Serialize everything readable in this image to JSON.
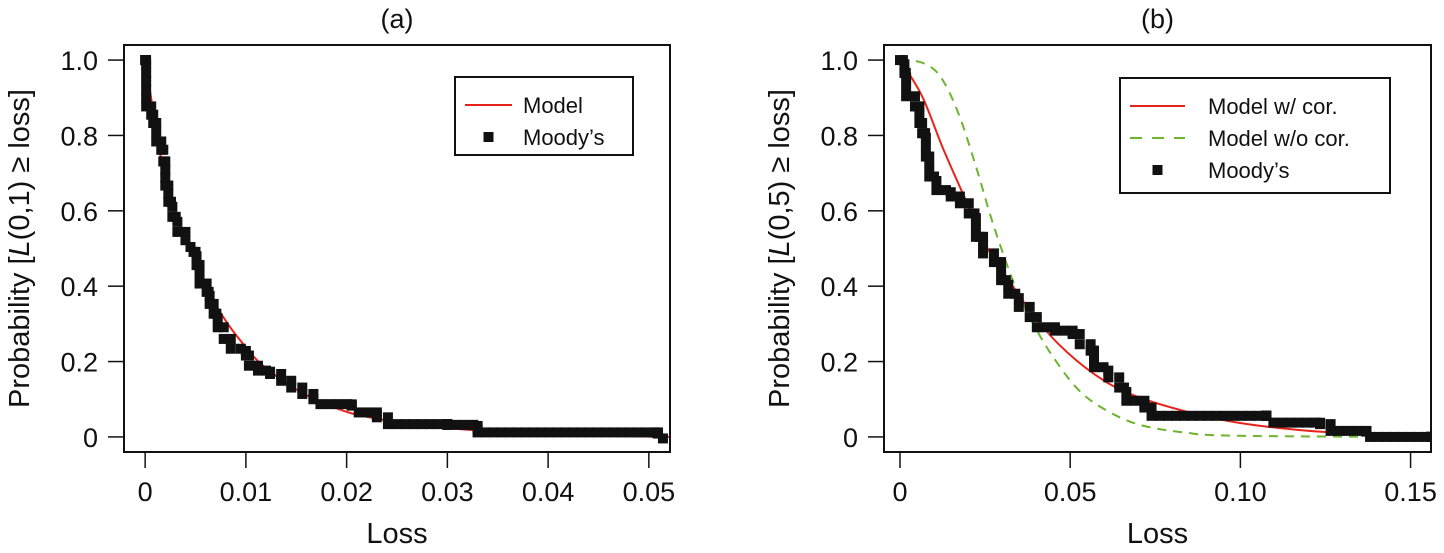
{
  "chart_data": [
    {
      "type": "scatter",
      "title": "(a)",
      "xlabel": "Loss",
      "ylabel_parts": [
        "Probability [",
        "L",
        "(0,1) ≥ loss]"
      ],
      "xlim": [
        -0.0021,
        0.0521
      ],
      "ylim": [
        -0.04,
        1.04
      ],
      "xticks": [
        0,
        0.01,
        0.02,
        0.03,
        0.04,
        0.05
      ],
      "xtick_labels": [
        "0",
        "0.01",
        "0.02",
        "0.03",
        "0.04",
        "0.05"
      ],
      "yticks": [
        0,
        0.2,
        0.4,
        0.6,
        0.8,
        1.0
      ],
      "ytick_labels": [
        "0",
        "0.2",
        "0.4",
        "0.6",
        "0.8",
        "1.0"
      ],
      "grid": false,
      "legend_placement": "top-right",
      "series": [
        {
          "name": "Model",
          "kind": "line",
          "color": "#e8231b",
          "dash": false,
          "x": [
            0,
            0.0011,
            0.002,
            0.0034,
            0.005,
            0.0064,
            0.0082,
            0.01,
            0.0117,
            0.0152,
            0.0188,
            0.0223,
            0.0294,
            0.04,
            0.052
          ],
          "y": [
            1.0,
            0.815,
            0.682,
            0.558,
            0.469,
            0.38,
            0.3,
            0.238,
            0.189,
            0.123,
            0.078,
            0.052,
            0.025,
            0.007,
            0.0
          ]
        },
        {
          "name": "Moody’s",
          "kind": "step-markers",
          "color": "#111111",
          "x": [
            0,
            0.0001,
            0.0006,
            0.0008,
            0.0011,
            0.0016,
            0.0018,
            0.002,
            0.0023,
            0.0027,
            0.0032,
            0.004,
            0.0045,
            0.0048,
            0.0051,
            0.0054,
            0.0061,
            0.0064,
            0.0068,
            0.0072,
            0.0078,
            0.0085,
            0.01,
            0.0103,
            0.0112,
            0.0124,
            0.0135,
            0.0145,
            0.0156,
            0.0167,
            0.0174,
            0.0205,
            0.0212,
            0.023,
            0.0241,
            0.03,
            0.033,
            0.0509,
            0.0514
          ],
          "y": [
            1.0,
            0.877,
            0.855,
            0.833,
            0.784,
            0.762,
            0.731,
            0.667,
            0.624,
            0.584,
            0.544,
            0.522,
            0.504,
            0.491,
            0.456,
            0.407,
            0.385,
            0.353,
            0.327,
            0.291,
            0.26,
            0.234,
            0.216,
            0.189,
            0.176,
            0.167,
            0.149,
            0.131,
            0.114,
            0.1,
            0.087,
            0.083,
            0.065,
            0.052,
            0.034,
            0.032,
            0.012,
            0.009,
            -0.004
          ]
        }
      ]
    },
    {
      "type": "scatter",
      "title": "(b)",
      "xlabel": "Loss",
      "ylabel_parts": [
        "Probability [",
        "L",
        "(0,5) ≥ loss]"
      ],
      "xlim": [
        -0.0047,
        0.156
      ],
      "ylim": [
        -0.04,
        1.04
      ],
      "xticks": [
        0,
        0.05,
        0.1,
        0.15
      ],
      "xtick_labels": [
        "0",
        "0.05",
        "0.10",
        "0.15"
      ],
      "yticks": [
        0,
        0.2,
        0.4,
        0.6,
        0.8,
        1.0
      ],
      "ytick_labels": [
        "0",
        "0.2",
        "0.4",
        "0.6",
        "0.8",
        "1.0"
      ],
      "grid": false,
      "legend_placement": "top-right",
      "series": [
        {
          "name": "Model w/ cor.",
          "kind": "line",
          "color": "#e8231b",
          "dash": false,
          "x": [
            0,
            0.0065,
            0.0128,
            0.0202,
            0.0255,
            0.0307,
            0.0381,
            0.0465,
            0.057,
            0.0676,
            0.0834,
            0.0992,
            0.1202,
            0.1413,
            0.156
          ],
          "y": [
            1.0,
            0.904,
            0.762,
            0.611,
            0.504,
            0.433,
            0.336,
            0.247,
            0.167,
            0.114,
            0.069,
            0.038,
            0.016,
            0.007,
            0.003
          ]
        },
        {
          "name": "Model w/o cor.",
          "kind": "line",
          "color": "#6cb52d",
          "dash": true,
          "x": [
            0,
            0.0065,
            0.0118,
            0.0171,
            0.0223,
            0.0276,
            0.0339,
            0.0392,
            0.0444,
            0.0518,
            0.0592,
            0.0697,
            0.0834,
            0.0992,
            0.156
          ],
          "y": [
            1.0,
            0.993,
            0.957,
            0.86,
            0.718,
            0.558,
            0.398,
            0.3,
            0.22,
            0.131,
            0.078,
            0.034,
            0.012,
            0.003,
            0.0
          ]
        },
        {
          "name": "Moody’s",
          "kind": "step-markers",
          "color": "#111111",
          "x": [
            0,
            0.0013,
            0.0018,
            0.0044,
            0.0057,
            0.0065,
            0.0076,
            0.0086,
            0.0107,
            0.0149,
            0.0176,
            0.0202,
            0.0223,
            0.0244,
            0.0276,
            0.0297,
            0.0318,
            0.0349,
            0.0381,
            0.0402,
            0.0455,
            0.0507,
            0.0528,
            0.056,
            0.057,
            0.0612,
            0.0644,
            0.0665,
            0.0718,
            0.0739,
            0.1076,
            0.1097,
            0.1234,
            0.1265,
            0.137,
            0.1381,
            0.156
          ],
          "y": [
            1.0,
            0.966,
            0.904,
            0.877,
            0.833,
            0.806,
            0.744,
            0.691,
            0.655,
            0.638,
            0.62,
            0.593,
            0.531,
            0.487,
            0.464,
            0.416,
            0.38,
            0.345,
            0.318,
            0.291,
            0.282,
            0.273,
            0.246,
            0.229,
            0.185,
            0.158,
            0.131,
            0.096,
            0.078,
            0.056,
            0.056,
            0.038,
            0.034,
            0.016,
            0.014,
            0.0,
            0.0
          ]
        }
      ]
    }
  ]
}
